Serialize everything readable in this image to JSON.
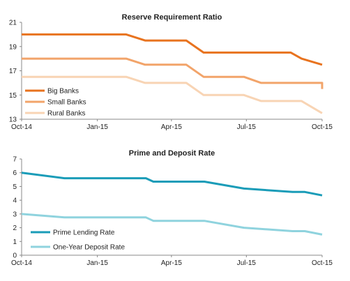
{
  "chart_data": [
    {
      "type": "line",
      "title": "Reserve Requirement Ratio",
      "xlabel": "",
      "ylabel": "",
      "ylim": [
        13,
        21
      ],
      "yticks": [
        13,
        15,
        17,
        19,
        21
      ],
      "xlim": [
        "2014-10-01",
        "2015-10-01"
      ],
      "x_tick_labels": [
        "Oct-14",
        "Jan-15",
        "Apr-15",
        "Jul-15",
        "Oct-15"
      ],
      "x_tick_dates": [
        "2014-10-01",
        "2015-01-01",
        "2015-04-01",
        "2015-07-01",
        "2015-10-01"
      ],
      "grid": false,
      "legend_position": "bottom-left",
      "series": [
        {
          "name": "Big Banks",
          "color": "#E8731F",
          "points": [
            [
              "2014-10-01",
              20.0
            ],
            [
              "2015-02-05",
              20.0
            ],
            [
              "2015-02-28",
              19.5
            ],
            [
              "2015-04-19",
              19.5
            ],
            [
              "2015-05-10",
              18.5
            ],
            [
              "2015-08-24",
              18.5
            ],
            [
              "2015-09-06",
              18.0
            ],
            [
              "2015-10-01",
              17.5
            ]
          ]
        },
        {
          "name": "Small Banks",
          "color": "#F2A46A",
          "points": [
            [
              "2014-10-01",
              18.0
            ],
            [
              "2015-02-05",
              18.0
            ],
            [
              "2015-02-28",
              17.5
            ],
            [
              "2015-04-19",
              17.5
            ],
            [
              "2015-05-10",
              16.5
            ],
            [
              "2015-06-28",
              16.5
            ],
            [
              "2015-07-19",
              16.0
            ],
            [
              "2015-10-01",
              16.0
            ],
            [
              "2015-10-01",
              15.5
            ]
          ]
        },
        {
          "name": "Rural Banks",
          "color": "#F8D4B4",
          "points": [
            [
              "2014-10-01",
              16.5
            ],
            [
              "2015-02-05",
              16.5
            ],
            [
              "2015-02-28",
              16.0
            ],
            [
              "2015-04-19",
              16.0
            ],
            [
              "2015-05-10",
              15.0
            ],
            [
              "2015-06-28",
              15.0
            ],
            [
              "2015-07-19",
              14.5
            ],
            [
              "2015-09-06",
              14.5
            ],
            [
              "2015-10-01",
              13.5
            ]
          ]
        }
      ]
    },
    {
      "type": "line",
      "title": "Prime and Deposit Rate",
      "xlabel": "",
      "ylabel": "",
      "ylim": [
        0,
        7
      ],
      "yticks": [
        0,
        1,
        2,
        3,
        4,
        5,
        6,
        7
      ],
      "xlim": [
        "2014-10-01",
        "2015-10-01"
      ],
      "x_tick_labels": [
        "Oct-14",
        "Jan-15",
        "Apr-15",
        "Jul-15",
        "Oct-15"
      ],
      "x_tick_dates": [
        "2014-10-01",
        "2015-01-01",
        "2015-04-01",
        "2015-07-01",
        "2015-10-01"
      ],
      "grid": false,
      "legend_position": "bottom-left",
      "series": [
        {
          "name": "Prime Lending Rate",
          "color": "#1A9CB8",
          "points": [
            [
              "2014-10-01",
              6.0
            ],
            [
              "2014-11-22",
              5.6
            ],
            [
              "2015-03-01",
              5.6
            ],
            [
              "2015-03-10",
              5.35
            ],
            [
              "2015-05-11",
              5.35
            ],
            [
              "2015-06-28",
              4.85
            ],
            [
              "2015-08-26",
              4.6
            ],
            [
              "2015-09-10",
              4.6
            ],
            [
              "2015-10-01",
              4.35
            ]
          ]
        },
        {
          "name": "One-Year Deposit Rate",
          "color": "#8FD3DE",
          "points": [
            [
              "2014-10-01",
              3.0
            ],
            [
              "2014-11-22",
              2.75
            ],
            [
              "2015-03-01",
              2.75
            ],
            [
              "2015-03-10",
              2.5
            ],
            [
              "2015-05-11",
              2.5
            ],
            [
              "2015-06-28",
              2.0
            ],
            [
              "2015-08-26",
              1.75
            ],
            [
              "2015-09-10",
              1.75
            ],
            [
              "2015-10-01",
              1.5
            ]
          ]
        }
      ]
    }
  ]
}
